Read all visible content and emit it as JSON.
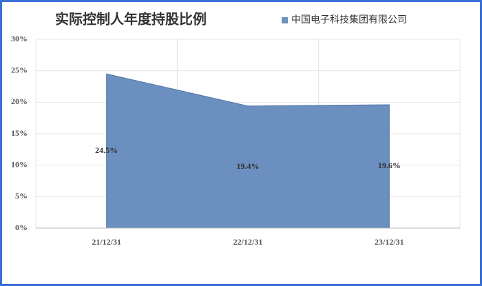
{
  "chart_data": {
    "type": "area",
    "title": "实际控制人年度持股比例",
    "categories": [
      "21/12/31",
      "22/12/31",
      "23/12/31"
    ],
    "series": [
      {
        "name": "中国电子科技集团有限公司",
        "color": "#6b8fbf",
        "values": [
          24.5,
          19.4,
          19.6
        ],
        "value_labels": [
          "24.5%",
          "19.4%",
          "19.6%"
        ]
      }
    ],
    "ylim": [
      0,
      30
    ],
    "yticks": [
      {
        "value": 0,
        "label": "0%"
      },
      {
        "value": 5,
        "label": "5%"
      },
      {
        "value": 10,
        "label": "10%"
      },
      {
        "value": 15,
        "label": "15%"
      },
      {
        "value": 20,
        "label": "20%"
      },
      {
        "value": 25,
        "label": "25%"
      },
      {
        "value": 30,
        "label": "30%"
      }
    ],
    "grid": true
  }
}
